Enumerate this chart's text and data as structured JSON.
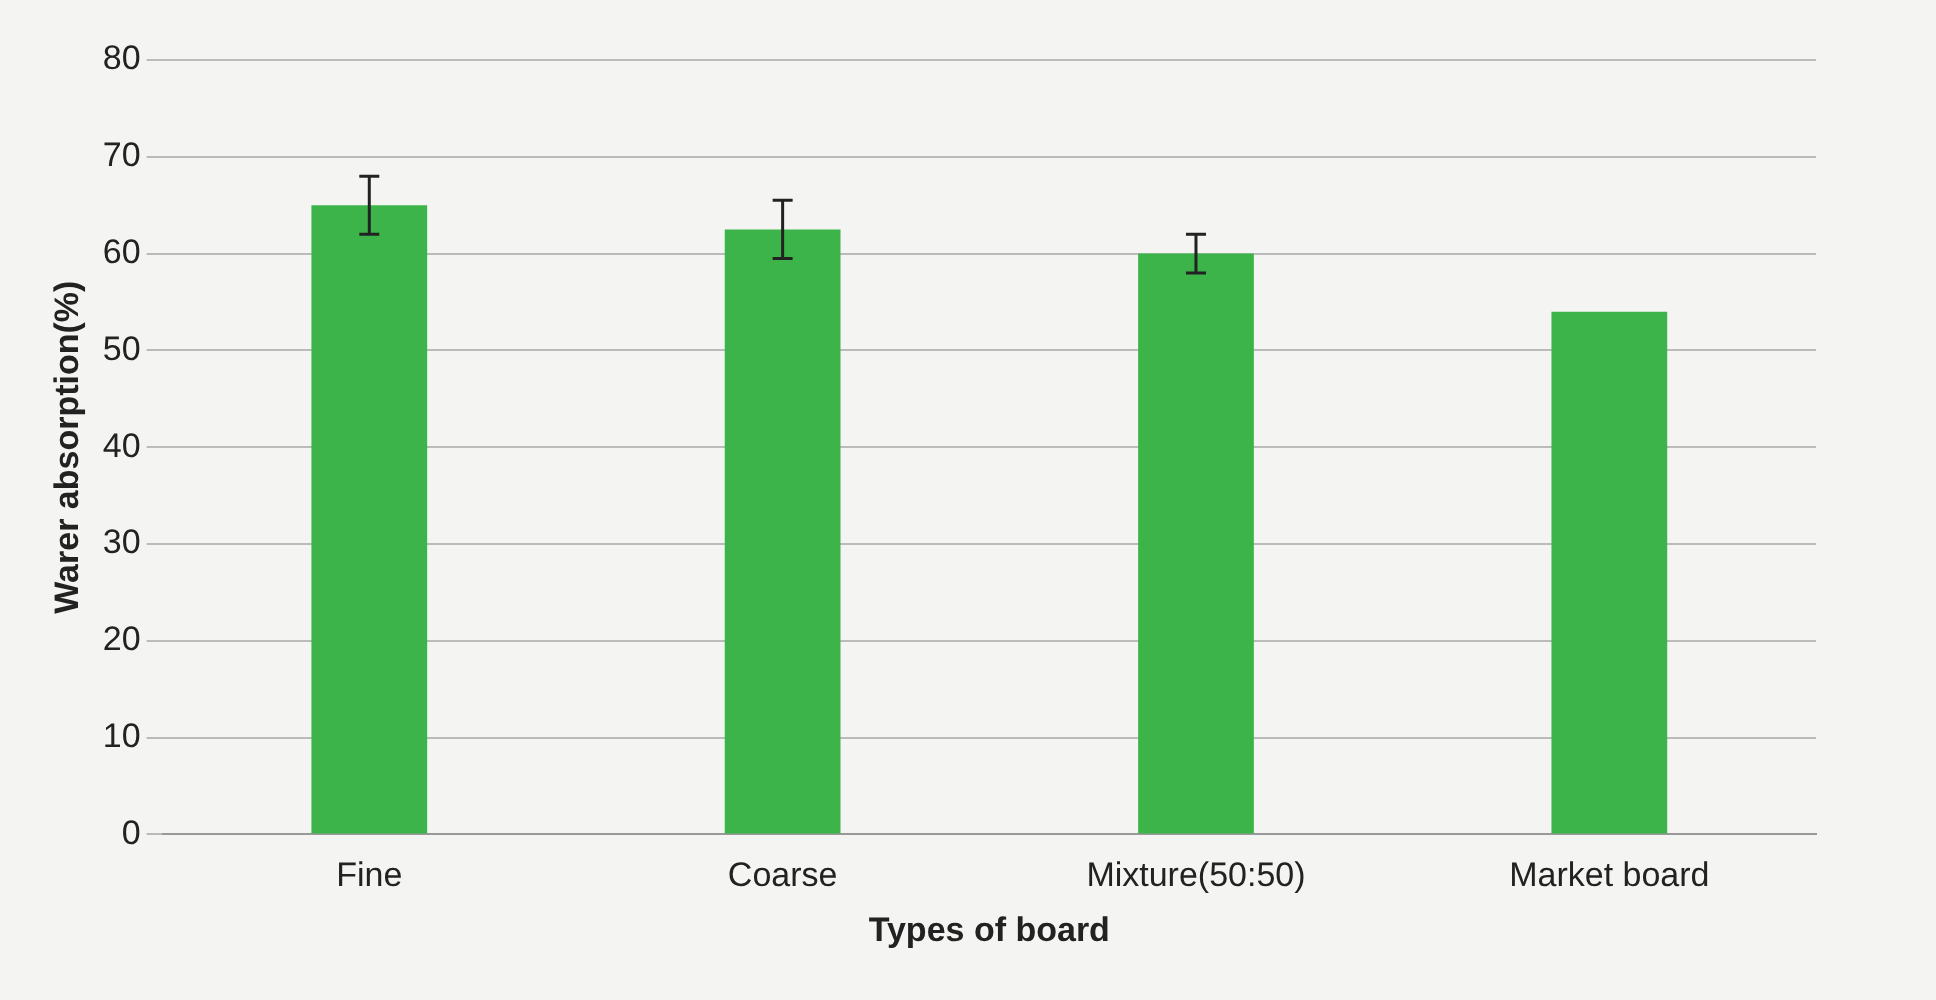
{
  "chart_data": {
    "type": "bar",
    "xlabel": "Types of board",
    "ylabel": "Warer absorption(%)",
    "categories": [
      "Fine",
      "Coarse",
      "Mixture(50:50)",
      "Market board"
    ],
    "values": [
      65,
      62.5,
      60,
      54
    ],
    "errors": [
      3,
      3,
      2,
      null
    ],
    "color": "#3cb44a",
    "ylim": [
      0,
      80
    ],
    "yticks": [
      0,
      10,
      20,
      30,
      40,
      50,
      60,
      70,
      80
    ],
    "grid": "y",
    "legend": false
  }
}
